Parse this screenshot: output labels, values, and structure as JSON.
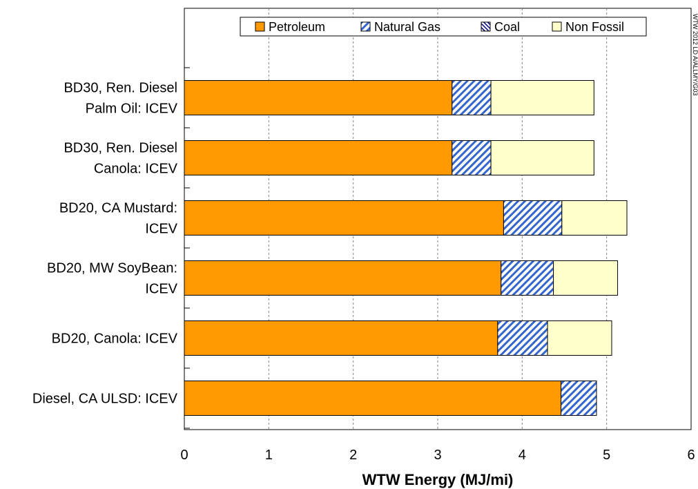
{
  "chart_data": {
    "type": "bar",
    "orientation": "horizontal",
    "stacked": true,
    "categories": [
      [
        "BD30, Ren. Diesel",
        "Palm Oil: ICEV"
      ],
      [
        "BD30, Ren. Diesel",
        "Canola: ICEV"
      ],
      [
        "BD20, CA Mustard:",
        "ICEV"
      ],
      [
        "BD20, MW SoyBean:",
        "ICEV"
      ],
      [
        "BD20, Canola: ICEV"
      ],
      [
        "Diesel, CA ULSD: ICEV"
      ]
    ],
    "series": [
      {
        "name": "Petroleum",
        "color": "#ff9900",
        "pattern": "solid",
        "values": [
          3.17,
          3.17,
          3.78,
          3.75,
          3.71,
          4.46
        ]
      },
      {
        "name": "Natural Gas",
        "color": "#3366cc",
        "pattern": "diagonal-hatch",
        "values": [
          0.46,
          0.46,
          0.69,
          0.62,
          0.59,
          0.42
        ]
      },
      {
        "name": "Coal",
        "color": "#000080",
        "pattern": "diagonal-hatch",
        "values": [
          0,
          0,
          0,
          0,
          0,
          0
        ]
      },
      {
        "name": "Non Fossil",
        "color": "#ffffcc",
        "pattern": "solid",
        "values": [
          1.22,
          1.22,
          0.77,
          0.76,
          0.76,
          0.0
        ]
      }
    ],
    "xlabel": "WTW Energy (MJ/mi)",
    "xlim": [
      0,
      6
    ],
    "xticks": [
      "0",
      "1",
      "2",
      "3",
      "4",
      "5",
      "6"
    ],
    "grid": "vertical-dashed",
    "legend_position": "top",
    "side_note": "WTW 2012 LD A/ALLMY/G03"
  }
}
